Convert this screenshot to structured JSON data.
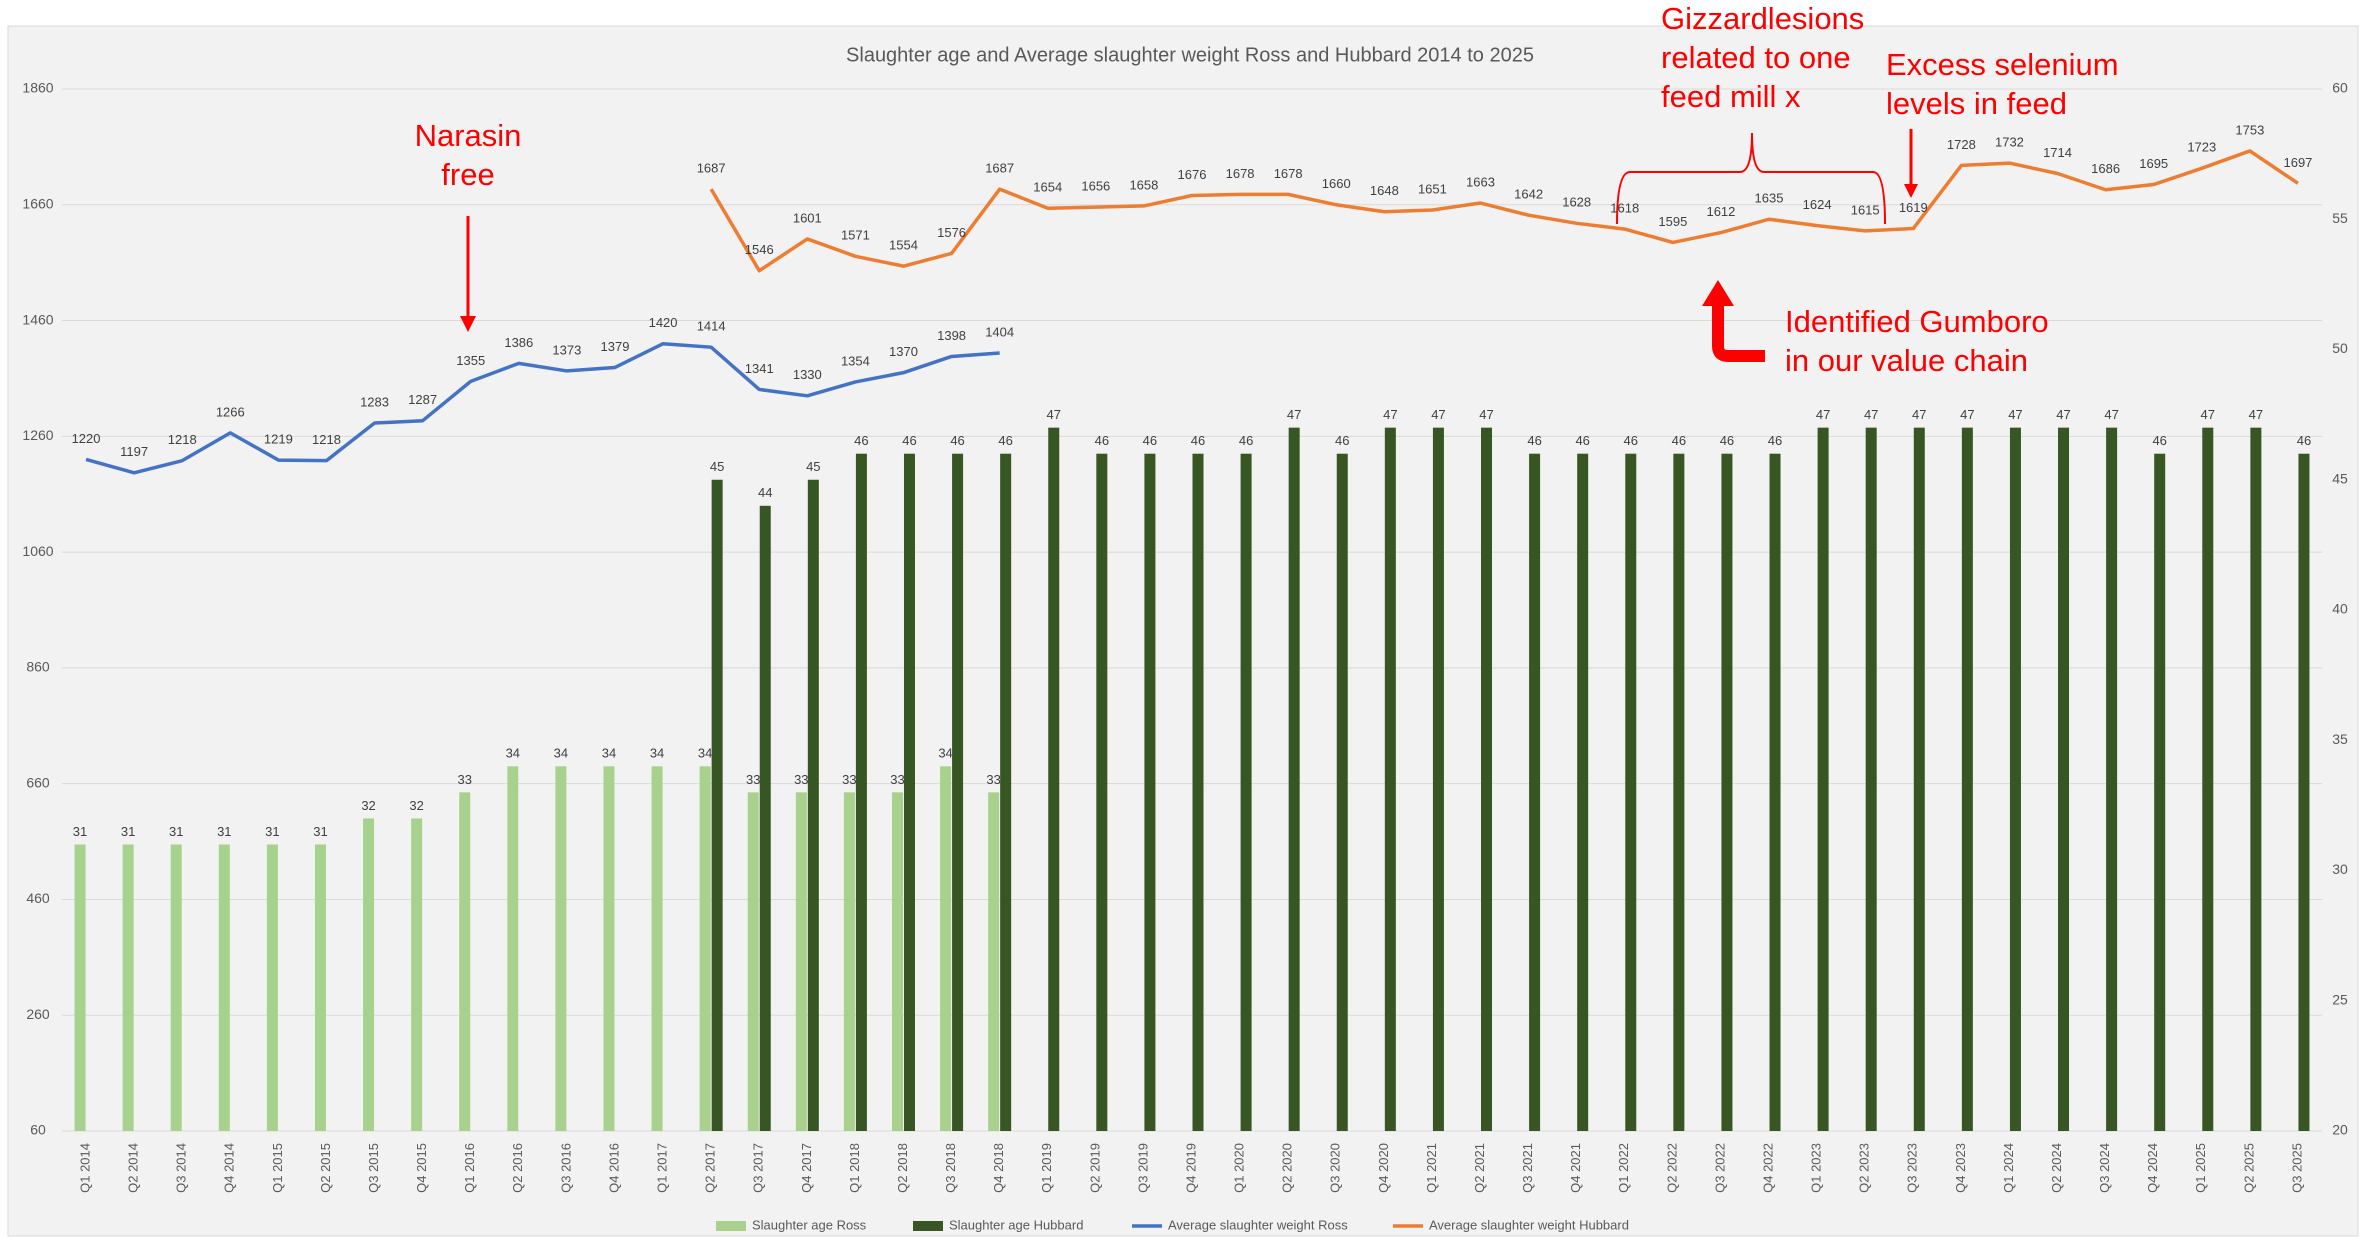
{
  "chart_data": {
    "type": "combo",
    "title": "Slaughter age and Average slaughter weight Ross and Hubbard 2014 to 2025",
    "categories": [
      "Q1 2014",
      "Q2 2014",
      "Q3 2014",
      "Q4 2014",
      "Q1 2015",
      "Q2 2015",
      "Q3 2015",
      "Q4 2015",
      "Q1 2016",
      "Q2 2016",
      "Q3 2016",
      "Q4 2016",
      "Q1 2017",
      "Q2 2017",
      "Q3 2017",
      "Q4 2017",
      "Q1 2018",
      "Q2 2018",
      "Q3 2018",
      "Q4 2018",
      "Q1 2019",
      "Q2 2019",
      "Q3 2019",
      "Q4 2019",
      "Q1 2020",
      "Q2 2020",
      "Q3 2020",
      "Q4 2020",
      "Q1 2021",
      "Q2 2021",
      "Q3 2021",
      "Q4 2021",
      "Q1 2022",
      "Q2 2022",
      "Q3 2022",
      "Q4 2022",
      "Q1 2023",
      "Q2 2023",
      "Q3 2023",
      "Q4 2023",
      "Q1 2024",
      "Q2 2024",
      "Q3 2024",
      "Q4 2024",
      "Q1 2025",
      "Q2 2025",
      "Q3 2025"
    ],
    "series": [
      {
        "name": "Slaughter age Ross",
        "type": "bar",
        "axis": "y2",
        "color": "#a9d18e",
        "values": [
          31,
          31,
          31,
          31,
          31,
          31,
          32,
          32,
          33,
          34,
          34,
          34,
          34,
          34,
          33,
          33,
          33,
          33,
          34,
          33,
          null,
          null,
          null,
          null,
          null,
          null,
          null,
          null,
          null,
          null,
          null,
          null,
          null,
          null,
          null,
          null,
          null,
          null,
          null,
          null,
          null,
          null,
          null,
          null,
          null,
          null,
          null
        ]
      },
      {
        "name": "Slaughter age Hubbard",
        "type": "bar",
        "axis": "y2",
        "color": "#375623",
        "values": [
          null,
          null,
          null,
          null,
          null,
          null,
          null,
          null,
          null,
          null,
          null,
          null,
          null,
          45,
          44,
          45,
          46,
          46,
          46,
          46,
          47,
          46,
          46,
          46,
          46,
          47,
          46,
          47,
          47,
          47,
          46,
          46,
          46,
          46,
          46,
          46,
          47,
          47,
          47,
          47,
          47,
          47,
          47,
          46,
          47,
          47,
          46
        ]
      },
      {
        "name": "Average slaughter weight Ross",
        "type": "line",
        "color": "#4472c4",
        "values": [
          1220,
          1197,
          1218,
          1266,
          1219,
          1218,
          1283,
          1287,
          1355,
          1386,
          1373,
          1379,
          1420,
          1414,
          1341,
          1330,
          1354,
          1370,
          1398,
          1404,
          null,
          null,
          null,
          null,
          null,
          null,
          null,
          null,
          null,
          null,
          null,
          null,
          null,
          null,
          null,
          null,
          null,
          null,
          null,
          null,
          null,
          null,
          null,
          null,
          null,
          null,
          null
        ]
      },
      {
        "name": "Average slaughter weight Hubbard",
        "type": "line",
        "color": "#ed7d31",
        "values": [
          null,
          null,
          null,
          null,
          null,
          null,
          null,
          null,
          null,
          null,
          null,
          null,
          null,
          1687,
          1546,
          1601,
          1571,
          1554,
          1576,
          1687,
          1654,
          1656,
          1658,
          1676,
          1678,
          1678,
          1660,
          1648,
          1651,
          1663,
          1642,
          1628,
          1618,
          1595,
          1612,
          1635,
          1624,
          1615,
          1619,
          1728,
          1732,
          1714,
          1686,
          1695,
          1723,
          1753,
          1697
        ]
      }
    ],
    "ylim": [
      60,
      1860
    ],
    "yticks": [
      60,
      260,
      460,
      660,
      860,
      1060,
      1260,
      1460,
      1660,
      1860
    ],
    "y2lim": [
      20,
      60
    ],
    "y2ticks": [
      20,
      25,
      30,
      35,
      40,
      45,
      50,
      55,
      60
    ],
    "grid": true,
    "legend": "bottom",
    "annotations": [
      {
        "lines": [
          "Narasin",
          "free"
        ]
      },
      {
        "lines": [
          "Gizzardlesions",
          "related to one",
          "feed mill x"
        ]
      },
      {
        "lines": [
          "Excess selenium",
          "levels in feed"
        ]
      },
      {
        "lines": [
          "Identified Gumboro",
          "in our value chain"
        ]
      }
    ]
  }
}
